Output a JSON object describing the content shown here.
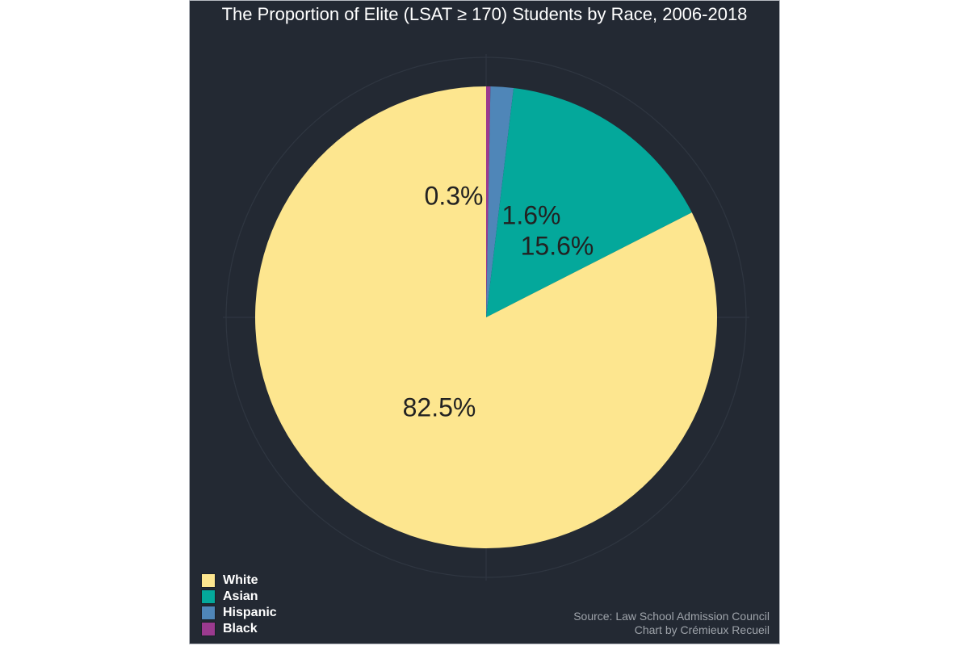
{
  "chart_data": {
    "type": "pie",
    "title": "The Proportion of Elite (LSAT ≥ 170) Students by Race, 2006-2018",
    "start_angle": "12 o'clock",
    "direction": "clockwise",
    "slices": [
      {
        "name": "Black",
        "value": 0.3,
        "label": "0.3%",
        "color": "#9b3a8f"
      },
      {
        "name": "Hispanic",
        "value": 1.6,
        "label": "1.6%",
        "color": "#4f86b8"
      },
      {
        "name": "Asian",
        "value": 15.6,
        "label": "15.6%",
        "color": "#04a89b"
      },
      {
        "name": "White",
        "value": 82.5,
        "label": "82.5%",
        "color": "#fde68f"
      }
    ],
    "legend": {
      "placement": "bottom-left",
      "entries": [
        {
          "name": "White",
          "color": "#fde68f"
        },
        {
          "name": "Asian",
          "color": "#04a89b"
        },
        {
          "name": "Hispanic",
          "color": "#4f86b8"
        },
        {
          "name": "Black",
          "color": "#9b3a8f"
        }
      ]
    },
    "source": "Source: Law School Admission Council",
    "credit": "Chart by Crémieux Recueil"
  }
}
